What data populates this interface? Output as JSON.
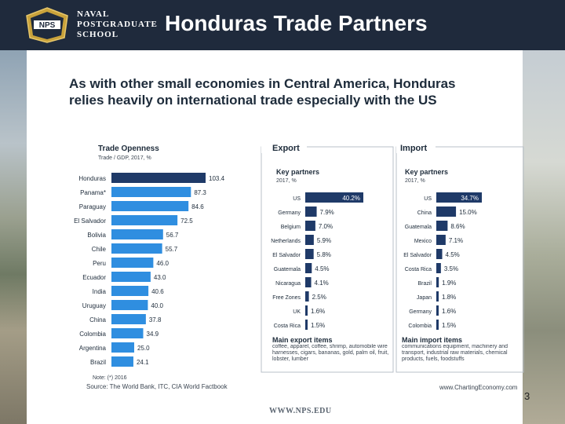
{
  "header": {
    "school_lines": [
      "NAVAL",
      "POSTGRADUATE",
      "SCHOOL"
    ],
    "logo_text": "NPS",
    "slide_title": "Honduras Trade Partners"
  },
  "heading": "As with other small economies in Central America, Honduras relies heavily on international trade especially with the US",
  "chart_data": [
    {
      "type": "bar",
      "orientation": "horizontal",
      "title": "Trade Openness",
      "subtitle": "Trade / GDP, 2017, %",
      "categories": [
        "Honduras",
        "Panama*",
        "Paraguay",
        "El Salvador",
        "Bolivia",
        "Chile",
        "Peru",
        "Ecuador",
        "India",
        "Uruguay",
        "China",
        "Colombia",
        "Argentina",
        "Brazil"
      ],
      "values": [
        103.4,
        87.3,
        84.6,
        72.5,
        56.7,
        55.7,
        46.0,
        43.0,
        40.6,
        40.0,
        37.8,
        34.9,
        25.0,
        24.1
      ],
      "value_labels": [
        "103.4",
        "87.3",
        "84.6",
        "72.5",
        "56.7",
        "55.7",
        "46.0",
        "43.0",
        "40.6",
        "40.0",
        "37.8",
        "34.9",
        "25.0",
        "24.1"
      ],
      "highlight": "Honduras",
      "note": "Note: (*) 2016",
      "source": "Source: The World Bank, ITC, CIA World Factbook"
    },
    {
      "type": "bar",
      "orientation": "horizontal",
      "panel": "Export",
      "title": "Key partners",
      "subtitle": "2017, %",
      "categories": [
        "US",
        "Germany",
        "Belgium",
        "Netherlands",
        "El Salvador",
        "Guatemala",
        "Nicaragua",
        "Free Zones",
        "UK",
        "Costa Rica"
      ],
      "values": [
        40.2,
        7.9,
        7.0,
        5.9,
        5.8,
        4.5,
        4.1,
        2.5,
        1.6,
        1.5
      ],
      "value_labels": [
        "40.2%",
        "7.9%",
        "7.0%",
        "5.9%",
        "5.8%",
        "4.5%",
        "4.1%",
        "2.5%",
        "1.6%",
        "1.5%"
      ],
      "items_title": "Main export items",
      "items_text": "coffee, apparel, coffee, shrimp, automobile wire harnesses, cigars, bananas, gold, palm oil, fruit, lobster, lumber"
    },
    {
      "type": "bar",
      "orientation": "horizontal",
      "panel": "Import",
      "title": "Key partners",
      "subtitle": "2017, %",
      "categories": [
        "US",
        "China",
        "Guatemala",
        "Mexico",
        "El Salvador",
        "Costa Rica",
        "Brazil",
        "Japan",
        "Germany",
        "Colombia"
      ],
      "values": [
        34.7,
        15.0,
        8.6,
        7.1,
        4.5,
        3.5,
        1.9,
        1.8,
        1.6,
        1.5
      ],
      "value_labels": [
        "34.7%",
        "15.0%",
        "8.6%",
        "7.1%",
        "4.5%",
        "3.5%",
        "1.9%",
        "1.8%",
        "1.6%",
        "1.5%"
      ],
      "items_title": "Main import items",
      "items_text": "communications equipment, machinery and transport, industrial raw materials, chemical products, fuels, foodstuffs"
    }
  ],
  "credit": "www.ChartingEconomy.com",
  "footer_url": "WWW.NPS.EDU",
  "page_number": "3",
  "colors": {
    "header_bg": "#1f2a3c",
    "bar_dark": "#1f3a68",
    "bar_light": "#2f8ee0",
    "text_dark": "#1d2b3a"
  }
}
